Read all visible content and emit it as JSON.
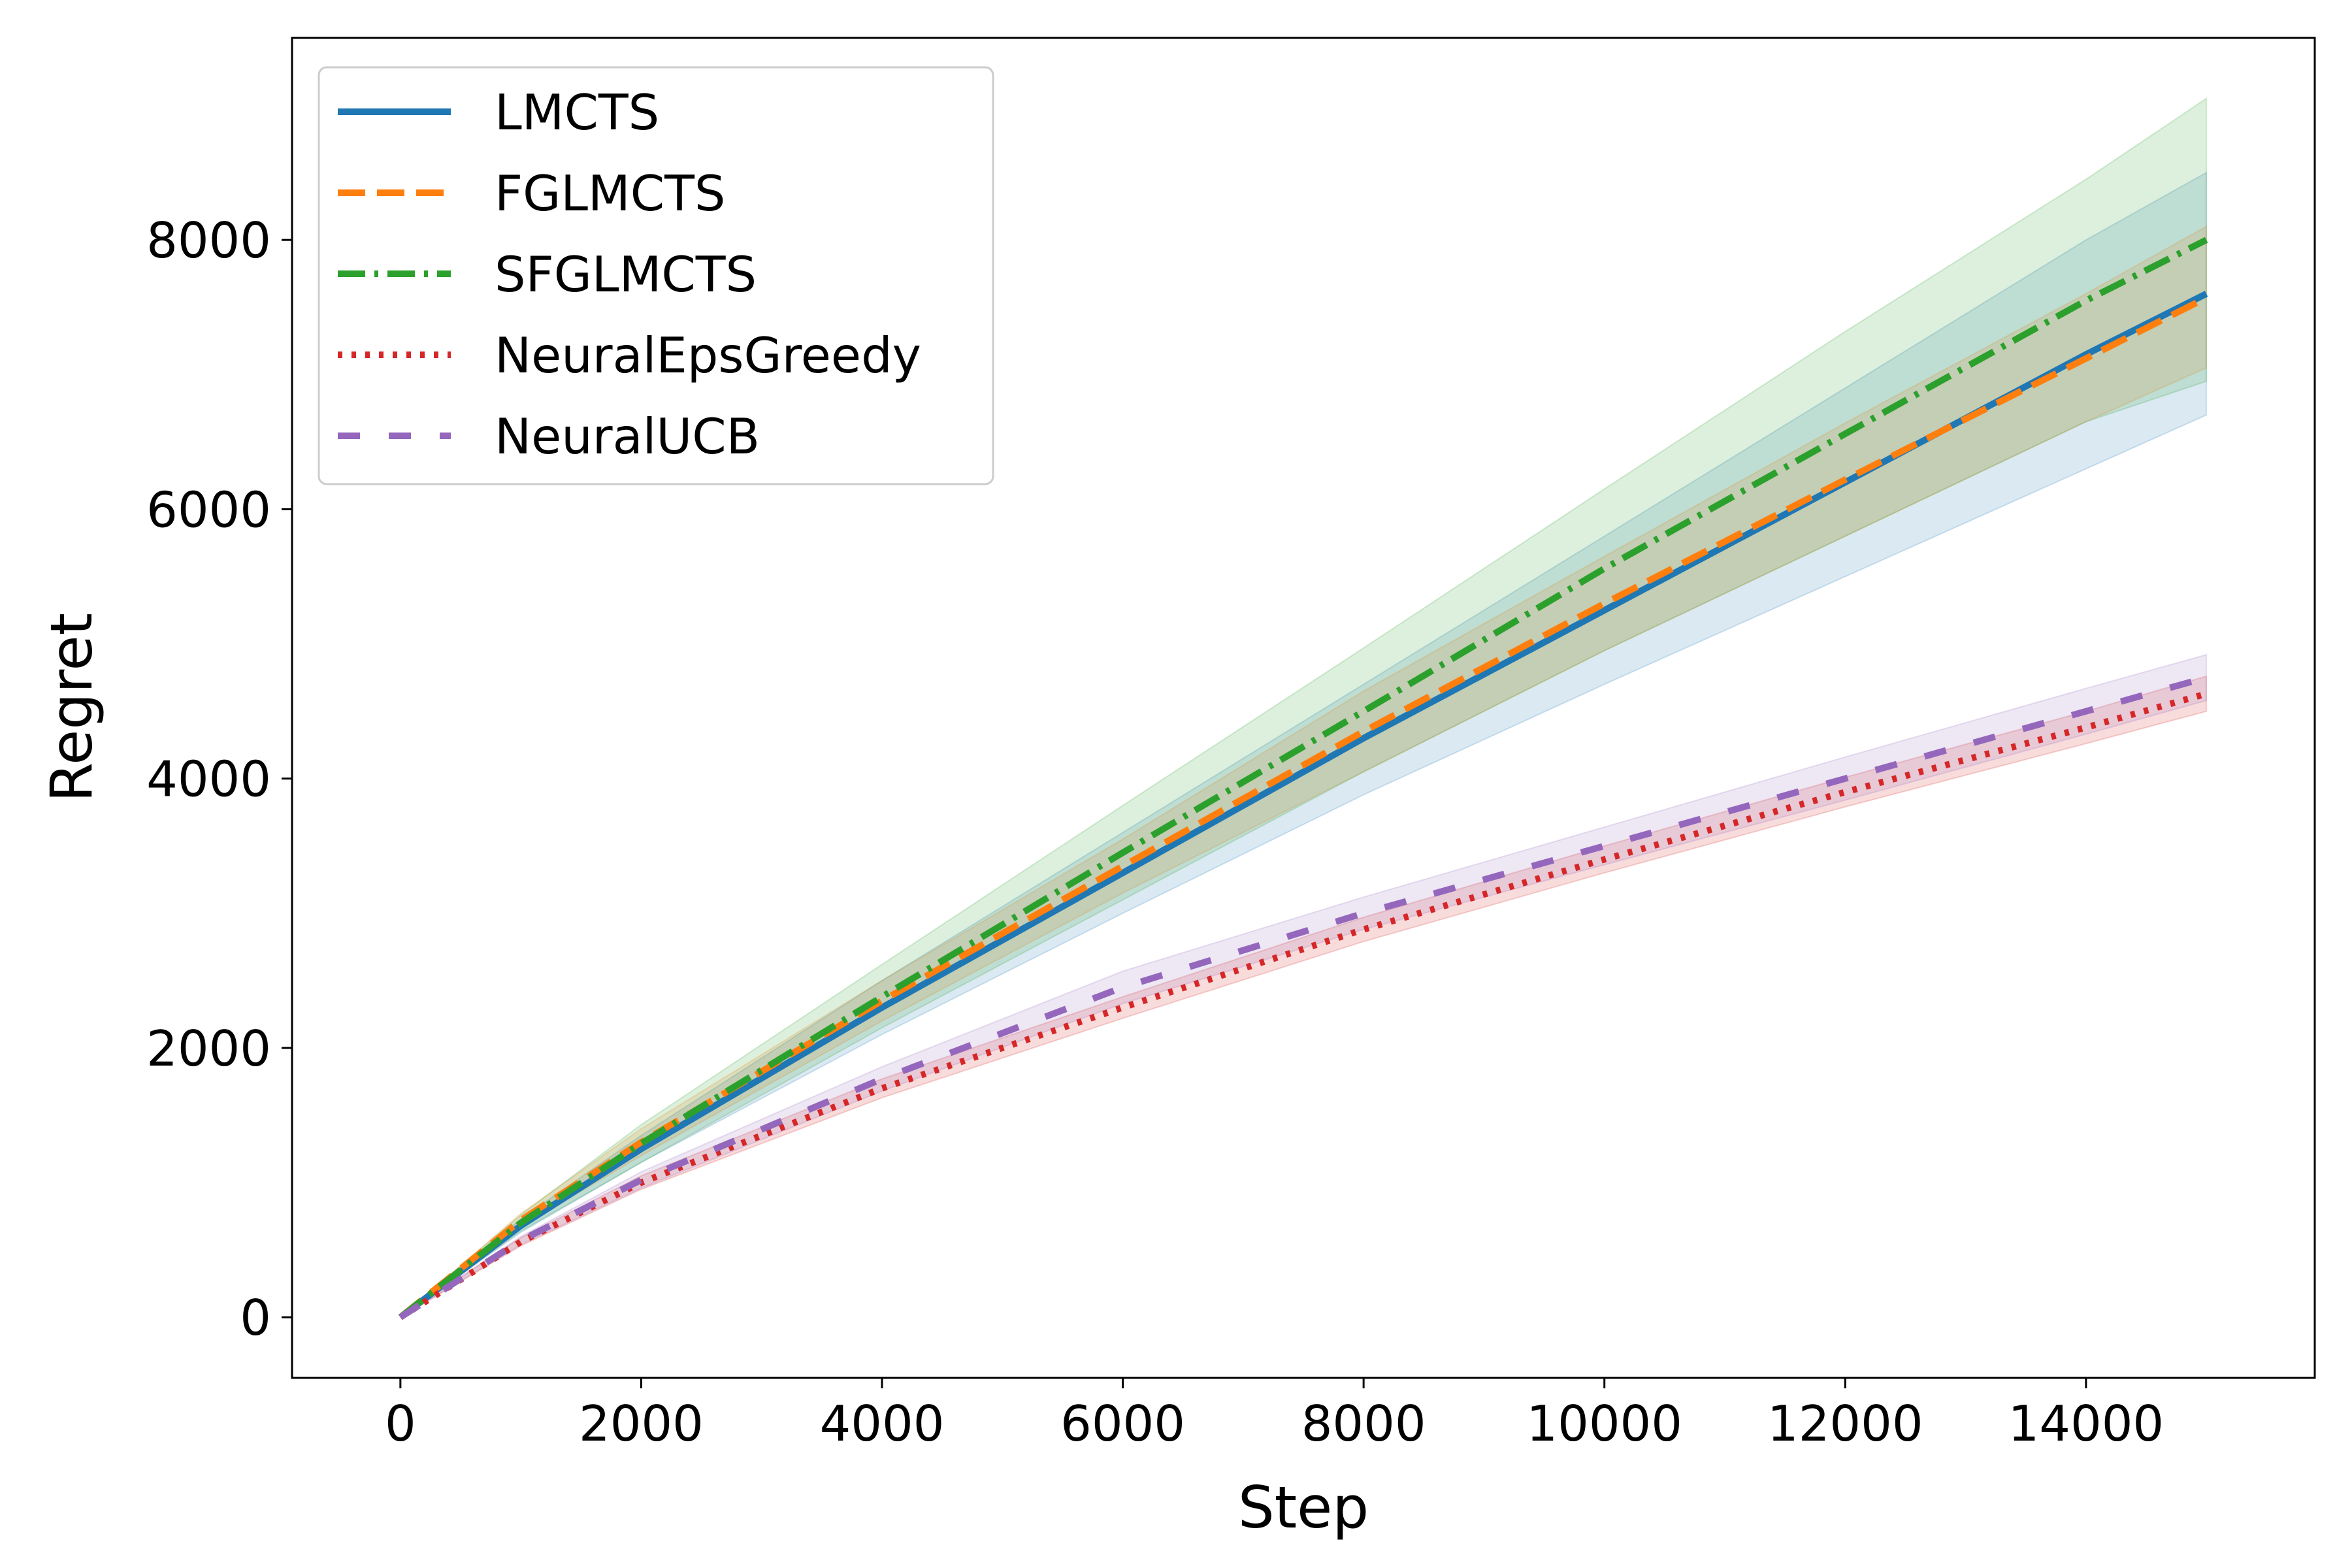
{
  "chart_data": {
    "type": "line",
    "title": "",
    "xlabel": "Step",
    "ylabel": "Regret",
    "xlim": [
      -900,
      15900
    ],
    "ylim": [
      -450,
      9500
    ],
    "xticks": [
      0,
      2000,
      4000,
      6000,
      8000,
      10000,
      12000,
      14000
    ],
    "yticks": [
      0,
      2000,
      4000,
      6000,
      8000
    ],
    "xtick_labels": [
      "0",
      "2000",
      "4000",
      "6000",
      "8000",
      "10000",
      "12000",
      "14000"
    ],
    "ytick_labels": [
      "0",
      "2000",
      "4000",
      "6000",
      "8000"
    ],
    "grid": false,
    "legend_position": "top-left",
    "x": [
      0,
      1000,
      2000,
      4000,
      6000,
      8000,
      10000,
      12000,
      14000,
      15000
    ],
    "series": [
      {
        "name": "LMCTS",
        "color": "#1f77b4",
        "style": "solid",
        "values": [
          0,
          680,
          1250,
          2300,
          3300,
          4300,
          5250,
          6200,
          7150,
          7600
        ],
        "lower": [
          0,
          630,
          1150,
          2100,
          3000,
          3880,
          4700,
          5500,
          6300,
          6700
        ],
        "upper": [
          0,
          730,
          1350,
          2500,
          3600,
          4700,
          5800,
          6900,
          8000,
          8500
        ]
      },
      {
        "name": "FGLMCTS",
        "color": "#ff7f0e",
        "style": "dashed",
        "values": [
          0,
          720,
          1300,
          2350,
          3350,
          4350,
          5300,
          6220,
          7120,
          7570
        ],
        "lower": [
          0,
          670,
          1200,
          2200,
          3150,
          4050,
          4950,
          5800,
          6650,
          7050
        ],
        "upper": [
          0,
          770,
          1400,
          2500,
          3550,
          4650,
          5650,
          6640,
          7600,
          8100
        ]
      },
      {
        "name": "SFGLMCTS",
        "color": "#2ca02c",
        "style": "dashdot",
        "values": [
          0,
          700,
          1290,
          2380,
          3450,
          4500,
          5560,
          6560,
          7550,
          8000
        ],
        "lower": [
          0,
          640,
          1150,
          2150,
          3100,
          4050,
          4950,
          5800,
          6650,
          6950
        ],
        "upper": [
          0,
          760,
          1430,
          2620,
          3800,
          4970,
          6150,
          7320,
          8450,
          9050
        ]
      },
      {
        "name": "NeuralEpsGreedy",
        "color": "#d62728",
        "style": "dotted",
        "values": [
          0,
          560,
          1000,
          1700,
          2300,
          2880,
          3400,
          3900,
          4380,
          4630
        ],
        "lower": [
          0,
          530,
          950,
          1630,
          2220,
          2790,
          3300,
          3790,
          4260,
          4500
        ],
        "upper": [
          0,
          590,
          1050,
          1770,
          2380,
          2970,
          3500,
          4010,
          4500,
          4760
        ]
      },
      {
        "name": "NeuralUCB",
        "color": "#9467bd",
        "style": "loosedash",
        "values": [
          0,
          570,
          1020,
          1770,
          2450,
          3000,
          3500,
          4000,
          4500,
          4750
        ],
        "lower": [
          0,
          540,
          960,
          1680,
          2330,
          2880,
          3360,
          3840,
          4330,
          4580
        ],
        "upper": [
          0,
          600,
          1080,
          1860,
          2570,
          3120,
          3640,
          4160,
          4670,
          4920
        ]
      }
    ]
  }
}
